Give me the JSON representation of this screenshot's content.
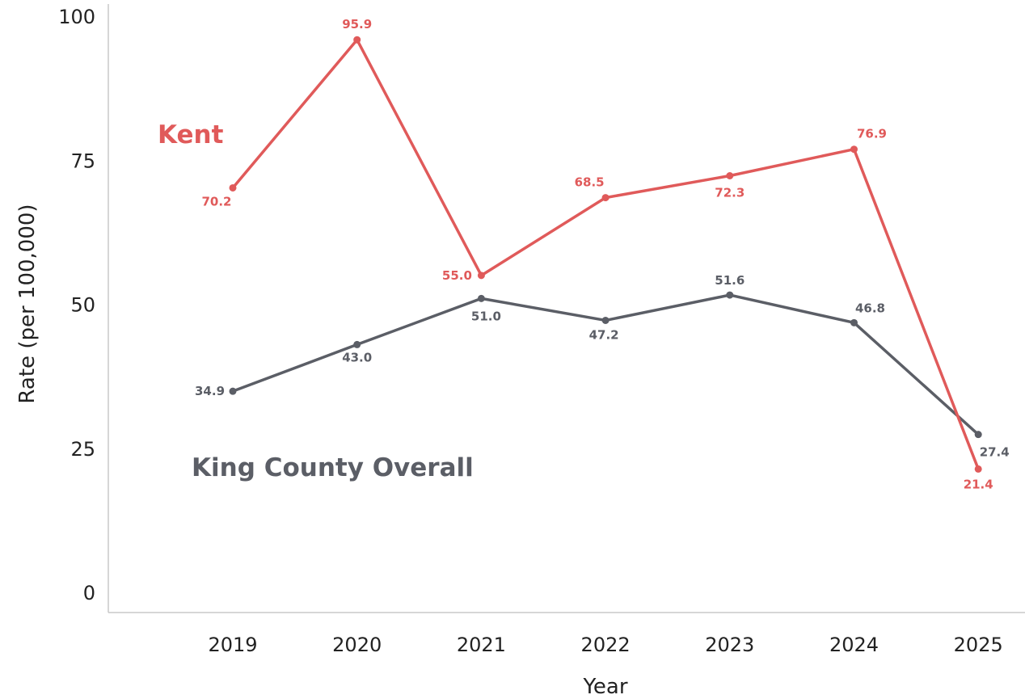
{
  "chart_data": {
    "type": "line",
    "xlabel": "Year",
    "ylabel": "Rate (per 100,000)",
    "categories": [
      "2019",
      "2020",
      "2021",
      "2022",
      "2023",
      "2024",
      "2025"
    ],
    "y_ticks": [
      "0",
      "25",
      "50",
      "75",
      "100"
    ],
    "ylim": [
      0,
      100
    ],
    "grid": false,
    "legend": "direct labels on chart",
    "series": [
      {
        "name": "Kent",
        "color": "#e05a5a",
        "values": [
          70.2,
          95.9,
          55.0,
          68.5,
          72.3,
          76.9,
          21.4
        ],
        "value_labels": [
          "70.2",
          "95.9",
          "55.0",
          "68.5",
          "72.3",
          "76.9",
          "21.4"
        ]
      },
      {
        "name": "King County Overall",
        "color": "#5b5e66",
        "values": [
          34.9,
          43.0,
          51.0,
          47.2,
          51.6,
          46.8,
          27.4
        ],
        "value_labels": [
          "34.9",
          "43.0",
          "51.0",
          "47.2",
          "51.6",
          "46.8",
          "27.4"
        ]
      }
    ]
  }
}
